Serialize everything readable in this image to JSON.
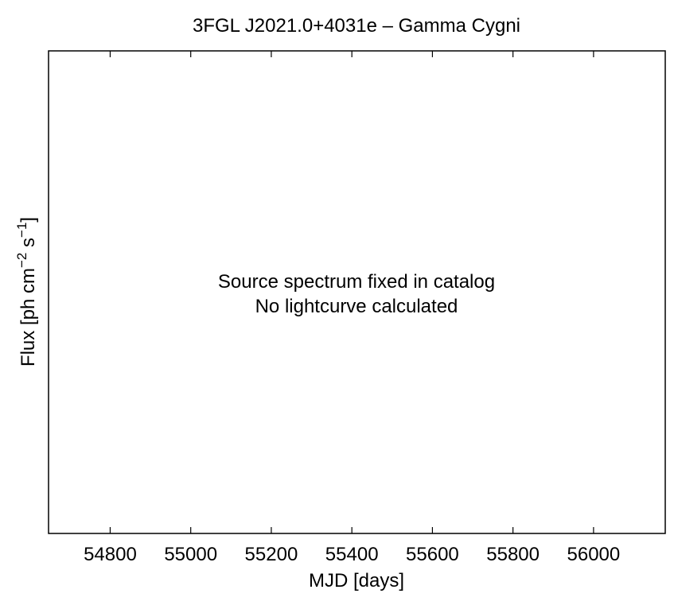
{
  "chart_data": {
    "type": "scatter",
    "title": "3FGL J2021.0+4031e – Gamma Cygni",
    "xlabel": "MJD [days]",
    "ylabel": {
      "main": "Flux [ph cm",
      "exp1": "−2",
      "mid": " s",
      "exp2": "−1",
      "end": "]"
    },
    "xlim": [
      54647,
      56178
    ],
    "x_ticks": [
      54800,
      55000,
      55200,
      55400,
      55600,
      55800,
      56000
    ],
    "y_ticks": [],
    "series": [],
    "annotations": [
      "Source spectrum fixed in catalog",
      "No lightcurve calculated"
    ],
    "grid": false,
    "legend": "none"
  }
}
